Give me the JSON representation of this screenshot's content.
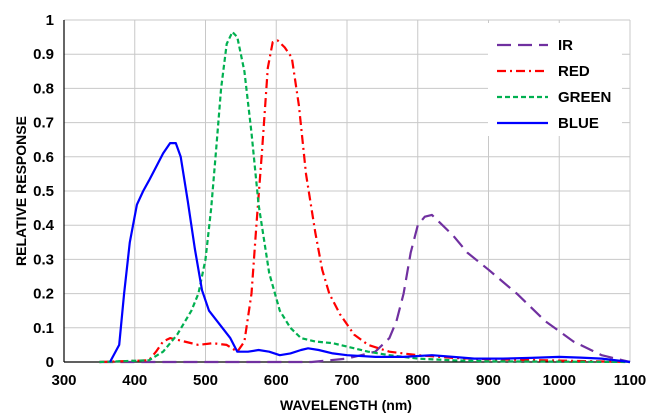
{
  "chart_data": {
    "type": "line",
    "xlabel": "WAVELENGTH (nm)",
    "ylabel": "RELATIVE RESPONSE",
    "xlim": [
      300,
      1100
    ],
    "ylim": [
      0,
      1
    ],
    "x_ticks": [
      300,
      400,
      500,
      600,
      700,
      800,
      900,
      1000,
      1100
    ],
    "x_tick_labels": [
      "300",
      "400",
      "500",
      "600",
      "700",
      "800",
      "900",
      "1000",
      "1100"
    ],
    "y_ticks": [
      0,
      0.1,
      0.2,
      0.3,
      0.4,
      0.5,
      0.6,
      0.7,
      0.8,
      0.9,
      1
    ],
    "y_tick_labels": [
      "0",
      "0.1",
      "0.2",
      "0.3",
      "0.4",
      "0.5",
      "0.6",
      "0.7",
      "0.8",
      "0.9",
      "1"
    ],
    "grid": true,
    "legend_position": "top-right",
    "series": [
      {
        "name": "IR",
        "color": "#7030a0",
        "dash": "long-dash",
        "points": [
          [
            350,
            0
          ],
          [
            500,
            0
          ],
          [
            650,
            0
          ],
          [
            700,
            0.01
          ],
          [
            740,
            0.03
          ],
          [
            760,
            0.07
          ],
          [
            770,
            0.12
          ],
          [
            780,
            0.2
          ],
          [
            790,
            0.32
          ],
          [
            800,
            0.4
          ],
          [
            810,
            0.425
          ],
          [
            820,
            0.43
          ],
          [
            830,
            0.41
          ],
          [
            850,
            0.37
          ],
          [
            870,
            0.32
          ],
          [
            900,
            0.27
          ],
          [
            940,
            0.2
          ],
          [
            980,
            0.12
          ],
          [
            1020,
            0.06
          ],
          [
            1060,
            0.02
          ],
          [
            1100,
            0
          ]
        ]
      },
      {
        "name": "RED",
        "color": "#ff0000",
        "dash": "dash-dot",
        "points": [
          [
            350,
            0
          ],
          [
            420,
            0.005
          ],
          [
            430,
            0.03
          ],
          [
            440,
            0.06
          ],
          [
            450,
            0.07
          ],
          [
            470,
            0.06
          ],
          [
            490,
            0.05
          ],
          [
            510,
            0.055
          ],
          [
            530,
            0.05
          ],
          [
            545,
            0.03
          ],
          [
            555,
            0.06
          ],
          [
            565,
            0.2
          ],
          [
            572,
            0.4
          ],
          [
            580,
            0.62
          ],
          [
            588,
            0.86
          ],
          [
            595,
            0.935
          ],
          [
            602,
            0.94
          ],
          [
            612,
            0.92
          ],
          [
            622,
            0.89
          ],
          [
            632,
            0.75
          ],
          [
            642,
            0.55
          ],
          [
            655,
            0.38
          ],
          [
            665,
            0.27
          ],
          [
            675,
            0.2
          ],
          [
            690,
            0.14
          ],
          [
            710,
            0.08
          ],
          [
            730,
            0.05
          ],
          [
            760,
            0.03
          ],
          [
            800,
            0.02
          ],
          [
            850,
            0.012
          ],
          [
            900,
            0.008
          ],
          [
            1000,
            0.004
          ],
          [
            1100,
            0
          ]
        ]
      },
      {
        "name": "GREEN",
        "color": "#00b050",
        "dash": "short-dash",
        "points": [
          [
            350,
            0
          ],
          [
            420,
            0.005
          ],
          [
            440,
            0.03
          ],
          [
            460,
            0.08
          ],
          [
            480,
            0.15
          ],
          [
            490,
            0.2
          ],
          [
            500,
            0.3
          ],
          [
            508,
            0.45
          ],
          [
            515,
            0.62
          ],
          [
            522,
            0.8
          ],
          [
            530,
            0.93
          ],
          [
            538,
            0.965
          ],
          [
            545,
            0.95
          ],
          [
            555,
            0.85
          ],
          [
            565,
            0.67
          ],
          [
            575,
            0.46
          ],
          [
            590,
            0.26
          ],
          [
            605,
            0.15
          ],
          [
            620,
            0.1
          ],
          [
            635,
            0.07
          ],
          [
            655,
            0.06
          ],
          [
            680,
            0.055
          ],
          [
            700,
            0.045
          ],
          [
            730,
            0.03
          ],
          [
            760,
            0.02
          ],
          [
            800,
            0.01
          ],
          [
            850,
            0.005
          ],
          [
            900,
            0.002
          ],
          [
            1100,
            0
          ]
        ]
      },
      {
        "name": "BLUE",
        "color": "#0000ff",
        "dash": "solid",
        "points": [
          [
            365,
            0
          ],
          [
            378,
            0.05
          ],
          [
            385,
            0.2
          ],
          [
            393,
            0.35
          ],
          [
            403,
            0.46
          ],
          [
            412,
            0.5
          ],
          [
            420,
            0.53
          ],
          [
            430,
            0.57
          ],
          [
            440,
            0.61
          ],
          [
            450,
            0.64
          ],
          [
            458,
            0.64
          ],
          [
            465,
            0.6
          ],
          [
            475,
            0.47
          ],
          [
            485,
            0.33
          ],
          [
            495,
            0.21
          ],
          [
            505,
            0.15
          ],
          [
            520,
            0.11
          ],
          [
            535,
            0.07
          ],
          [
            545,
            0.03
          ],
          [
            560,
            0.03
          ],
          [
            575,
            0.035
          ],
          [
            590,
            0.03
          ],
          [
            605,
            0.02
          ],
          [
            620,
            0.025
          ],
          [
            635,
            0.035
          ],
          [
            645,
            0.04
          ],
          [
            660,
            0.035
          ],
          [
            680,
            0.025
          ],
          [
            700,
            0.02
          ],
          [
            740,
            0.015
          ],
          [
            780,
            0.015
          ],
          [
            820,
            0.02
          ],
          [
            850,
            0.015
          ],
          [
            880,
            0.01
          ],
          [
            920,
            0.01
          ],
          [
            960,
            0.012
          ],
          [
            1000,
            0.015
          ],
          [
            1030,
            0.013
          ],
          [
            1060,
            0.01
          ],
          [
            1100,
            0
          ]
        ]
      }
    ]
  }
}
